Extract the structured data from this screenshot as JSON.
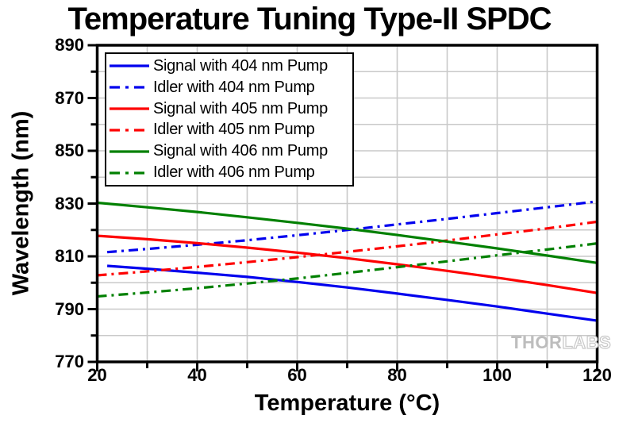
{
  "title": "Temperature Tuning Type-II SPDC",
  "watermark": {
    "part1": "THOR",
    "part2": "LABS"
  },
  "colors": {
    "blue": "#0000ee",
    "red": "#fe0000",
    "green": "#008000",
    "grid": "#c9c9c9",
    "axis": "#000000"
  },
  "chart_data": {
    "type": "line",
    "title": "Temperature Tuning Type-II SPDC",
    "xlabel": "Temperature (°C)",
    "ylabel": "Wavelength (nm)",
    "xlim": [
      20,
      120
    ],
    "ylim": [
      770,
      890
    ],
    "x_major_ticks": [
      20,
      40,
      60,
      80,
      100,
      120
    ],
    "x_minor_ticks": [
      30,
      50,
      70,
      90,
      110
    ],
    "y_major_ticks": [
      770,
      790,
      810,
      830,
      850,
      870,
      890
    ],
    "y_minor_ticks": [
      780,
      800,
      820,
      840,
      860,
      880
    ],
    "grid": {
      "shown": true,
      "x_step": 10,
      "y_step": 10
    },
    "legend_position": "top-left",
    "series": [
      {
        "name": "Signal with 404 nm Pump",
        "color": "#0000ee",
        "style": "solid",
        "points": [
          [
            22,
            806.4
          ],
          [
            30,
            805.3
          ],
          [
            40,
            803.8
          ],
          [
            50,
            802.2
          ],
          [
            60,
            800.3
          ],
          [
            70,
            798.2
          ],
          [
            80,
            795.9
          ],
          [
            90,
            793.5
          ],
          [
            100,
            791.0
          ],
          [
            110,
            788.3
          ],
          [
            120,
            785.6
          ]
        ]
      },
      {
        "name": "Idler with 404 nm Pump",
        "color": "#0000ee",
        "style": "dash-dot",
        "points": [
          [
            22,
            811.6
          ],
          [
            30,
            812.8
          ],
          [
            40,
            814.4
          ],
          [
            50,
            816.1
          ],
          [
            60,
            818.0
          ],
          [
            70,
            820.0
          ],
          [
            80,
            822.1
          ],
          [
            90,
            824.2
          ],
          [
            100,
            826.4
          ],
          [
            110,
            828.6
          ],
          [
            120,
            830.8
          ]
        ]
      },
      {
        "name": "Signal with 405 nm Pump",
        "color": "#fe0000",
        "style": "solid",
        "points": [
          [
            20,
            817.8
          ],
          [
            30,
            816.5
          ],
          [
            40,
            815.0
          ],
          [
            50,
            813.3
          ],
          [
            60,
            811.4
          ],
          [
            70,
            809.3
          ],
          [
            80,
            807.0
          ],
          [
            90,
            804.5
          ],
          [
            100,
            801.9
          ],
          [
            110,
            799.1
          ],
          [
            120,
            796.1
          ]
        ]
      },
      {
        "name": "Idler with 405 nm Pump",
        "color": "#fe0000",
        "style": "dash-dot",
        "points": [
          [
            20,
            802.8
          ],
          [
            30,
            804.3
          ],
          [
            40,
            806.0
          ],
          [
            50,
            807.8
          ],
          [
            60,
            809.7
          ],
          [
            70,
            811.7
          ],
          [
            80,
            813.8
          ],
          [
            90,
            816.0
          ],
          [
            100,
            818.3
          ],
          [
            110,
            820.6
          ],
          [
            120,
            823.1
          ]
        ]
      },
      {
        "name": "Signal with 406 nm Pump",
        "color": "#008000",
        "style": "solid",
        "points": [
          [
            20,
            830.3
          ],
          [
            30,
            828.6
          ],
          [
            40,
            826.8
          ],
          [
            50,
            824.8
          ],
          [
            60,
            822.7
          ],
          [
            70,
            820.5
          ],
          [
            80,
            818.1
          ],
          [
            90,
            815.6
          ],
          [
            100,
            813.0
          ],
          [
            110,
            810.3
          ],
          [
            120,
            807.5
          ]
        ]
      },
      {
        "name": "Idler with 406 nm Pump",
        "color": "#008000",
        "style": "dash-dot",
        "points": [
          [
            20,
            794.8
          ],
          [
            30,
            796.3
          ],
          [
            40,
            797.9
          ],
          [
            50,
            799.7
          ],
          [
            60,
            801.6
          ],
          [
            70,
            803.7
          ],
          [
            80,
            805.9
          ],
          [
            90,
            808.1
          ],
          [
            100,
            810.4
          ],
          [
            110,
            812.6
          ],
          [
            120,
            814.9
          ]
        ]
      }
    ]
  }
}
